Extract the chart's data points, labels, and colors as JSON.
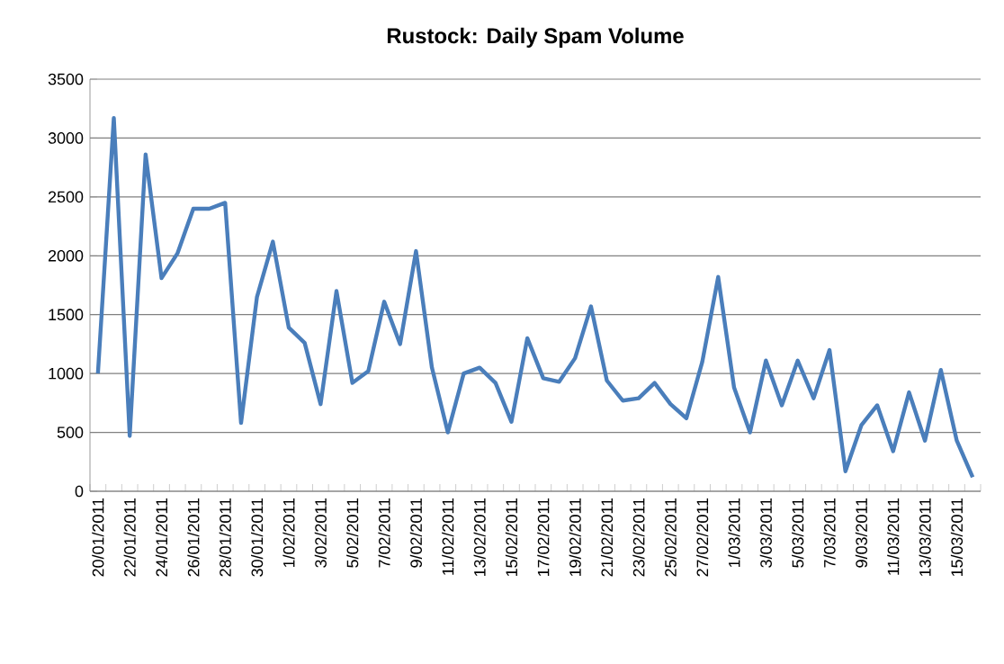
{
  "chart_data": {
    "type": "line",
    "title": "Rustock: Daily Spam Volume",
    "categories": [
      "20/01/2011",
      null,
      "22/01/2011",
      null,
      "24/01/2011",
      null,
      "26/01/2011",
      null,
      "28/01/2011",
      null,
      "30/01/2011",
      null,
      "1/02/2011",
      null,
      "3/02/2011",
      null,
      "5/02/2011",
      null,
      "7/02/2011",
      null,
      "9/02/2011",
      null,
      "11/02/2011",
      null,
      "13/02/2011",
      null,
      "15/02/2011",
      null,
      "17/02/2011",
      null,
      "19/02/2011",
      null,
      "21/02/2011",
      null,
      "23/02/2011",
      null,
      "25/02/2011",
      null,
      "27/02/2011",
      null,
      "1/03/2011",
      null,
      "3/03/2011",
      null,
      "5/03/2011",
      null,
      "7/03/2011",
      null,
      "9/03/2011",
      null,
      "11/03/2011",
      null,
      "13/03/2011",
      null,
      "15/03/2011",
      null
    ],
    "series": [
      {
        "color": "#4a7ebb",
        "values": [
          1000,
          3170,
          470,
          2860,
          1810,
          2020,
          2400,
          2400,
          2450,
          580,
          1650,
          2120,
          1390,
          1260,
          740,
          1700,
          920,
          1020,
          1610,
          1250,
          2040,
          1050,
          500,
          1000,
          1050,
          920,
          590,
          1300,
          960,
          930,
          1130,
          1570,
          940,
          770,
          790,
          920,
          740,
          620,
          1100,
          1820,
          880,
          500,
          1110,
          730,
          1110,
          790,
          1200,
          170,
          560,
          730,
          340,
          840,
          430,
          1030,
          430,
          120
        ]
      }
    ],
    "ylim": [
      0,
      3500
    ],
    "yticks": [
      0,
      500,
      1000,
      1500,
      2000,
      2500,
      3000,
      3500
    ],
    "grid": "y"
  }
}
